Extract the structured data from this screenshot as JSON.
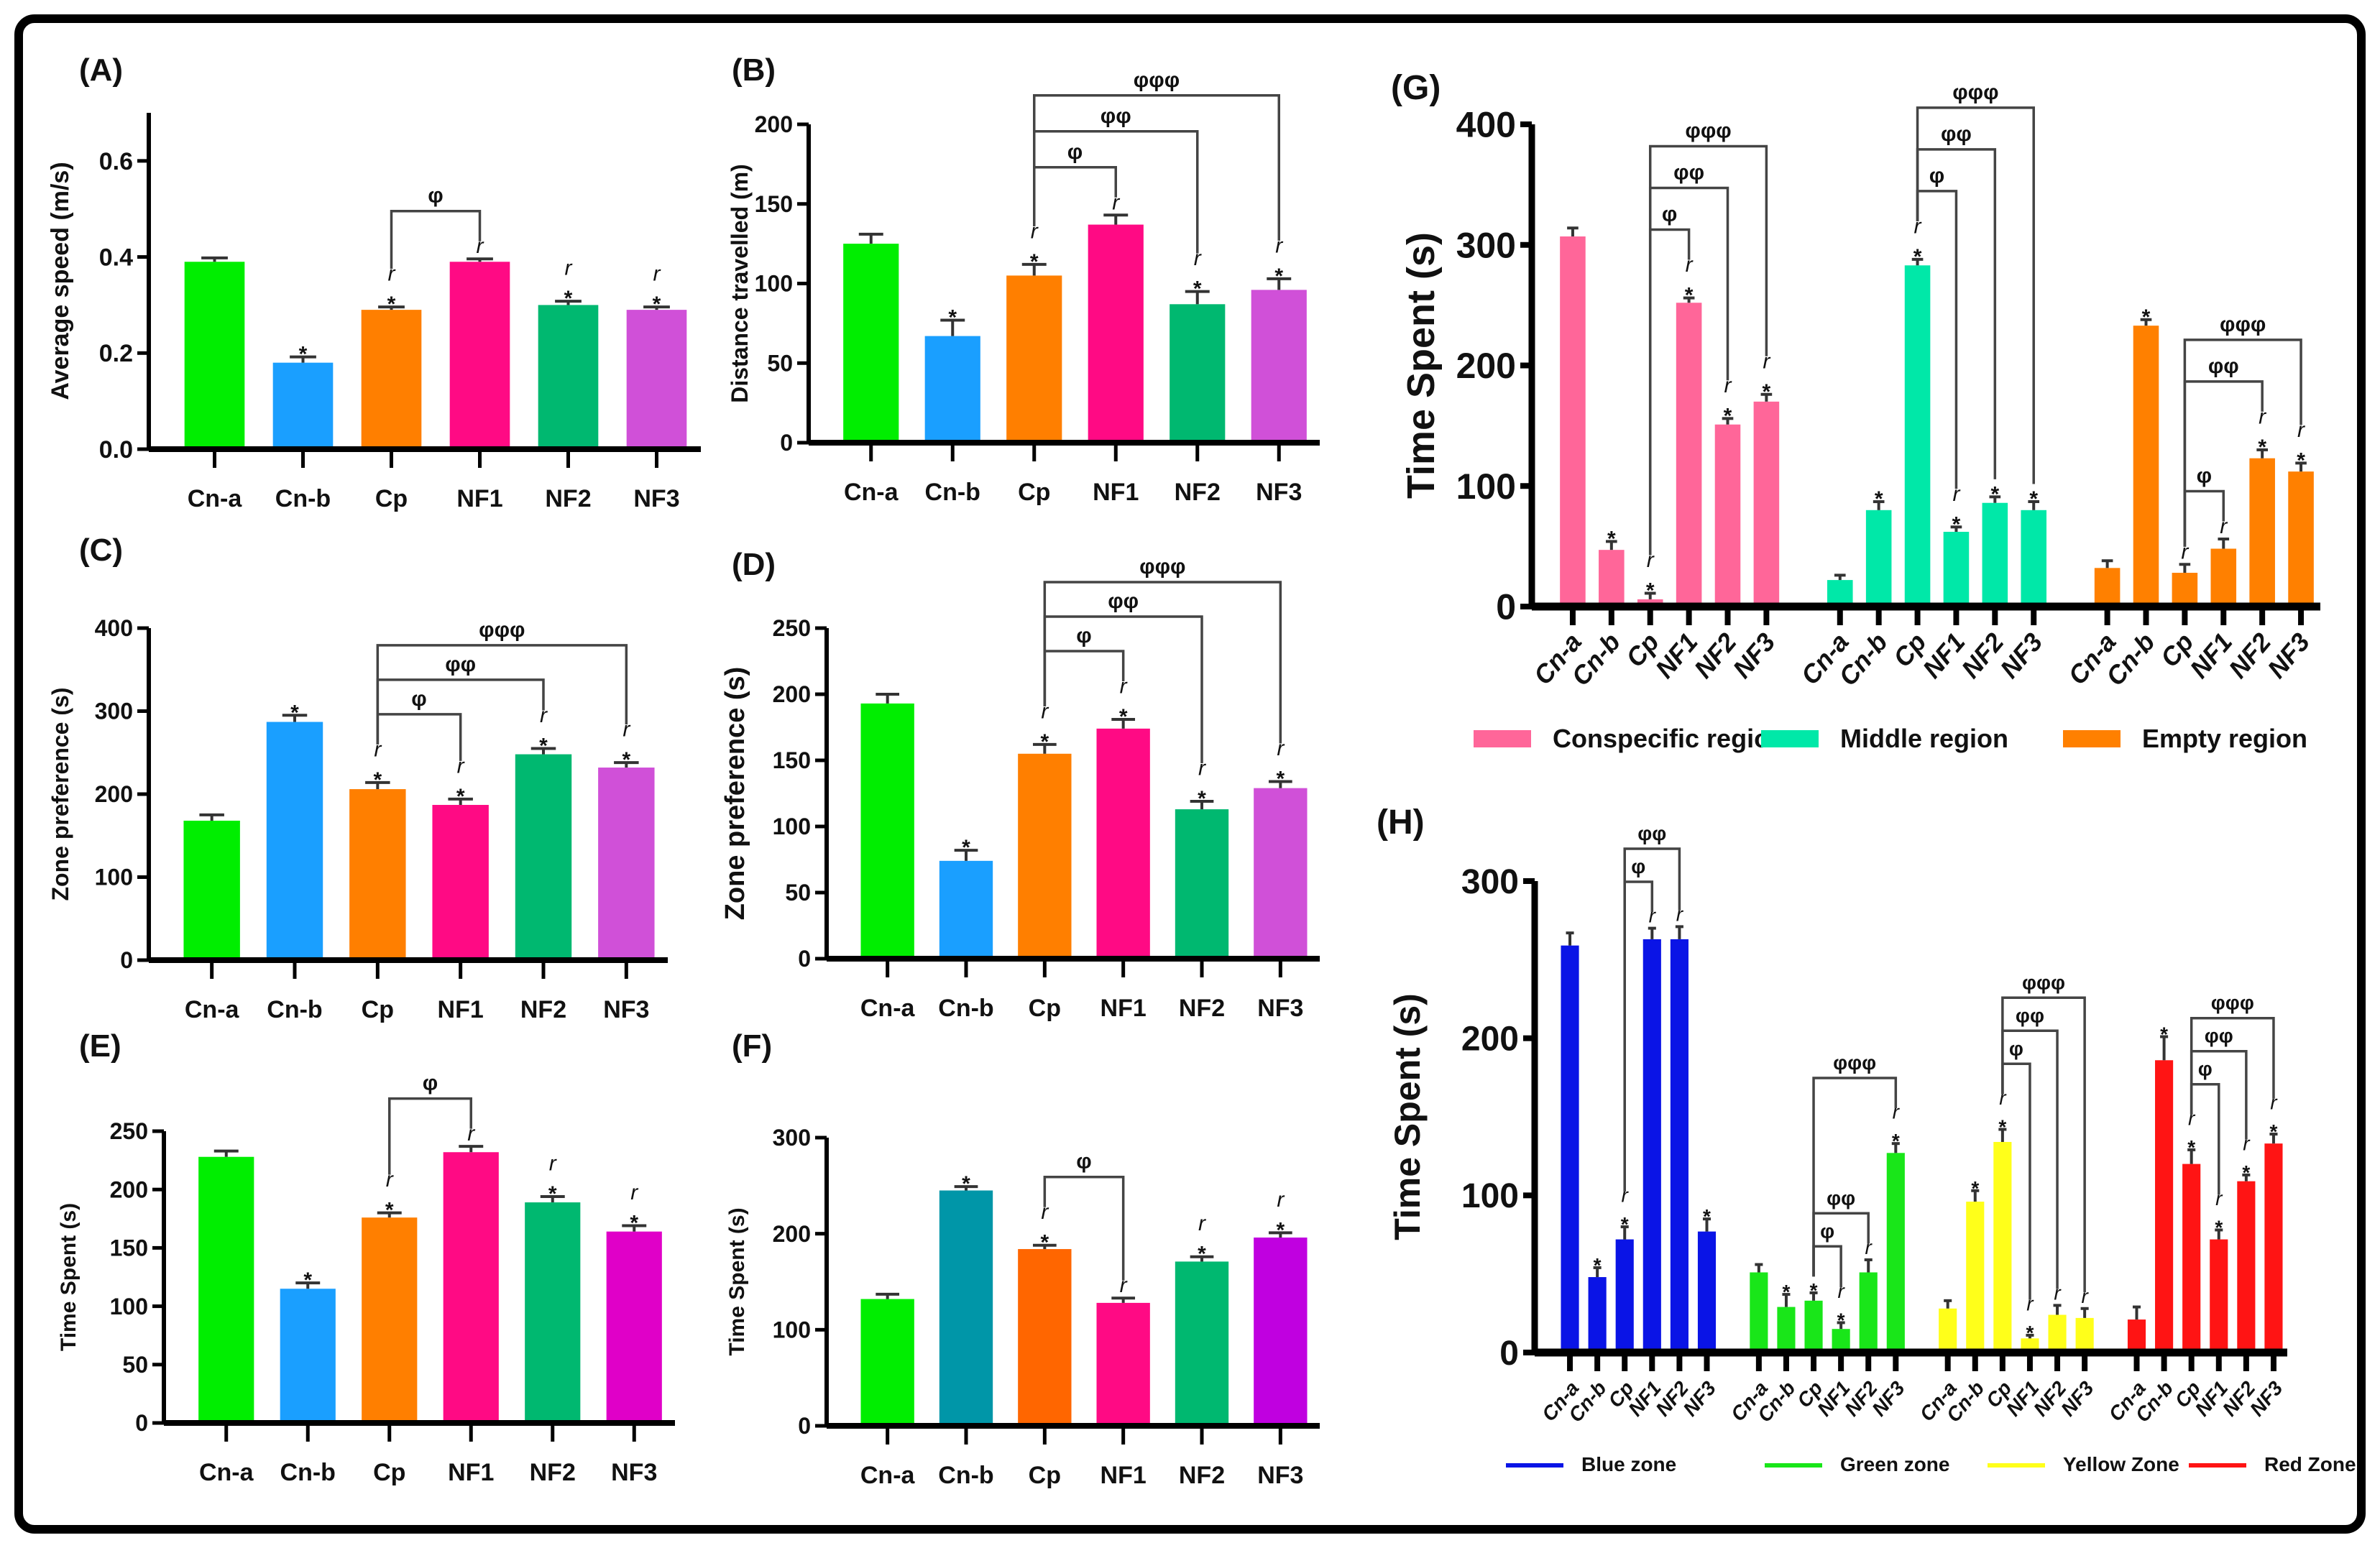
{
  "chart_data": [
    {
      "title": "(A)",
      "type": "bar",
      "ylabel": "Average speed (m/s)",
      "ylim": [
        0,
        0.7
      ],
      "yticks": [
        "0.0",
        "0.2",
        "0.4",
        "0.6"
      ],
      "ytick_values": [
        0,
        0.2,
        0.4,
        0.6
      ],
      "groups": [
        {
          "name": "",
          "categories": [
            "Cn-a",
            "Cn-b",
            "Cp",
            "NF1",
            "NF2",
            "NF3"
          ],
          "colors": [
            "#00ee00",
            "#1a9fff",
            "#ff7f00",
            "#ff0a84",
            "#00b870",
            "#d050d8"
          ],
          "values": [
            0.39,
            0.18,
            0.29,
            0.39,
            0.3,
            0.29
          ],
          "errors": [
            0.008,
            0.012,
            0.006,
            0.006,
            0.008,
            0.006
          ],
          "marks": [
            [],
            [
              "*"
            ],
            [
              "*",
              "r"
            ],
            [
              "r"
            ],
            [
              "*",
              "r"
            ],
            [
              "*",
              "r"
            ]
          ],
          "brackets": [
            {
              "from": 2,
              "to": 3,
              "label": "φ"
            }
          ]
        }
      ]
    },
    {
      "title": "(B)",
      "type": "bar",
      "ylabel": "Distance travelled (m)",
      "ylim": [
        0,
        200
      ],
      "yticks": [
        "0",
        "50",
        "100",
        "150",
        "200"
      ],
      "ytick_values": [
        0,
        50,
        100,
        150,
        200
      ],
      "groups": [
        {
          "name": "",
          "categories": [
            "Cn-a",
            "Cn-b",
            "Cp",
            "NF1",
            "NF2",
            "NF3"
          ],
          "colors": [
            "#00ee00",
            "#1a9fff",
            "#ff7f00",
            "#ff0a84",
            "#00b870",
            "#d050d8"
          ],
          "values": [
            125,
            67,
            105,
            137,
            87,
            96
          ],
          "errors": [
            6,
            10,
            7,
            6,
            8,
            7
          ],
          "marks": [
            [],
            [
              "*"
            ],
            [
              "*",
              "r"
            ],
            [
              "r"
            ],
            [
              "*",
              "r"
            ],
            [
              "*",
              "r"
            ]
          ],
          "brackets": [
            {
              "from": 2,
              "to": 3,
              "label": "φ"
            },
            {
              "from": 2,
              "to": 4,
              "label": "φφ"
            },
            {
              "from": 2,
              "to": 5,
              "label": "φφφ"
            }
          ]
        }
      ]
    },
    {
      "title": "(C)",
      "type": "bar",
      "ylabel": "Zone preference (s)",
      "ylim": [
        0,
        400
      ],
      "yticks": [
        "0",
        "100",
        "200",
        "300",
        "400"
      ],
      "ytick_values": [
        0,
        100,
        200,
        300,
        400
      ],
      "groups": [
        {
          "name": "",
          "categories": [
            "Cn-a",
            "Cn-b",
            "Cp",
            "NF1",
            "NF2",
            "NF3"
          ],
          "colors": [
            "#00ee00",
            "#1a9fff",
            "#ff7f00",
            "#ff0a84",
            "#00b870",
            "#d050d8"
          ],
          "values": [
            168,
            287,
            206,
            187,
            248,
            232
          ],
          "errors": [
            7,
            8,
            8,
            7,
            7,
            6
          ],
          "marks": [
            [],
            [
              "*"
            ],
            [
              "*",
              "r"
            ],
            [
              "*",
              "r"
            ],
            [
              "*",
              "r"
            ],
            [
              "*",
              "r"
            ]
          ],
          "brackets": [
            {
              "from": 2,
              "to": 3,
              "label": "φ"
            },
            {
              "from": 2,
              "to": 4,
              "label": "φφ"
            },
            {
              "from": 2,
              "to": 5,
              "label": "φφφ"
            }
          ]
        }
      ]
    },
    {
      "title": "(D)",
      "type": "bar",
      "ylabel": "Zone preference (s)",
      "ylim": [
        0,
        250
      ],
      "yticks": [
        "0",
        "50",
        "100",
        "150",
        "200",
        "250"
      ],
      "ytick_values": [
        0,
        50,
        100,
        150,
        200,
        250
      ],
      "groups": [
        {
          "name": "",
          "categories": [
            "Cn-a",
            "Cn-b",
            "Cp",
            "NF1",
            "NF2",
            "NF3"
          ],
          "colors": [
            "#00ee00",
            "#1a9fff",
            "#ff7f00",
            "#ff0a84",
            "#00b870",
            "#d050d8"
          ],
          "values": [
            193,
            74,
            155,
            174,
            113,
            129
          ],
          "errors": [
            7,
            8,
            7,
            7,
            6,
            5
          ],
          "marks": [
            [],
            [
              "*"
            ],
            [
              "*",
              "r"
            ],
            [
              "*",
              "r"
            ],
            [
              "*",
              "r"
            ],
            [
              "*",
              "r"
            ]
          ],
          "brackets": [
            {
              "from": 2,
              "to": 3,
              "label": "φ"
            },
            {
              "from": 2,
              "to": 4,
              "label": "φφ"
            },
            {
              "from": 2,
              "to": 5,
              "label": "φφφ"
            }
          ]
        }
      ]
    },
    {
      "title": "(E)",
      "type": "bar",
      "ylabel": "Time Spent (s)",
      "ylim": [
        0,
        250
      ],
      "yticks": [
        "0",
        "50",
        "100",
        "150",
        "200",
        "250"
      ],
      "ytick_values": [
        0,
        50,
        100,
        150,
        200,
        250
      ],
      "groups": [
        {
          "name": "",
          "categories": [
            "Cn-a",
            "Cn-b",
            "Cp",
            "NF1",
            "NF2",
            "NF3"
          ],
          "colors": [
            "#00ee00",
            "#1a9fff",
            "#ff7f00",
            "#ff0a84",
            "#00b870",
            "#e000c8"
          ],
          "values": [
            228,
            115,
            176,
            232,
            189,
            164
          ],
          "errors": [
            5,
            5,
            4,
            5,
            5,
            5
          ],
          "marks": [
            [],
            [
              "*"
            ],
            [
              "*",
              "r"
            ],
            [
              "r"
            ],
            [
              "*",
              "r"
            ],
            [
              "*",
              "r"
            ]
          ],
          "brackets": [
            {
              "from": 2,
              "to": 3,
              "label": "φ"
            }
          ]
        }
      ]
    },
    {
      "title": "(F)",
      "type": "bar",
      "ylabel": "Time Spent (s)",
      "ylim": [
        0,
        300
      ],
      "yticks": [
        "0",
        "100",
        "200",
        "300"
      ],
      "ytick_values": [
        0,
        100,
        200,
        300
      ],
      "groups": [
        {
          "name": "",
          "categories": [
            "Cn-a",
            "Cn-b",
            "Cp",
            "NF1",
            "NF2",
            "NF3"
          ],
          "colors": [
            "#00ee00",
            "#0096a8",
            "#ff6600",
            "#ff0a84",
            "#00b870",
            "#c000e0"
          ],
          "values": [
            132,
            245,
            184,
            128,
            171,
            196
          ],
          "errors": [
            5,
            4,
            4,
            5,
            5,
            5
          ],
          "marks": [
            [],
            [
              "*"
            ],
            [
              "*",
              "r"
            ],
            [
              "r"
            ],
            [
              "*",
              "r"
            ],
            [
              "*",
              "r"
            ]
          ],
          "brackets": [
            {
              "from": 2,
              "to": 3,
              "label": "φ"
            }
          ]
        }
      ]
    },
    {
      "title": "(G)",
      "type": "bar",
      "ylabel": "Time Spent (s)",
      "ylim": [
        0,
        400
      ],
      "yticks": [
        "0",
        "100",
        "200",
        "300",
        "400"
      ],
      "ytick_values": [
        0,
        100,
        200,
        300,
        400
      ],
      "legend_style": "box",
      "groups": [
        {
          "name": "Conspecific region",
          "color": "#ff6699",
          "categories": [
            "Cn-a",
            "Cn-b",
            "Cp",
            "NF1",
            "NF2",
            "NF3"
          ],
          "values": [
            307,
            47,
            6,
            252,
            151,
            170
          ],
          "errors": [
            7,
            7,
            5,
            4,
            5,
            6
          ],
          "marks": [
            [],
            [
              "*"
            ],
            [
              "*",
              "r"
            ],
            [
              "*",
              "r"
            ],
            [
              "*",
              "r"
            ],
            [
              "*",
              "r"
            ]
          ],
          "brackets": [
            {
              "from": 2,
              "to": 3,
              "label": "φ"
            },
            {
              "from": 2,
              "to": 4,
              "label": "φφ"
            },
            {
              "from": 2,
              "to": 5,
              "label": "φφφ"
            }
          ]
        },
        {
          "name": "Middle region",
          "color": "#00e8a8",
          "categories": [
            "Cn-a",
            "Cn-b",
            "Cp",
            "NF1",
            "NF2",
            "NF3"
          ],
          "values": [
            22,
            80,
            283,
            62,
            86,
            80
          ],
          "errors": [
            4,
            7,
            5,
            4,
            5,
            7
          ],
          "marks": [
            [],
            [
              "*"
            ],
            [
              "*",
              "r"
            ],
            [
              "*",
              "r"
            ],
            [
              "*"
            ],
            [
              "*"
            ]
          ],
          "brackets": [
            {
              "from": 2,
              "to": 3,
              "label": "φ"
            },
            {
              "from": 2,
              "to": 4,
              "label": "φφ"
            },
            {
              "from": 2,
              "to": 5,
              "label": "φφφ"
            }
          ]
        },
        {
          "name": "Empty region",
          "color": "#ff8000",
          "categories": [
            "Cn-a",
            "Cn-b",
            "Cp",
            "NF1",
            "NF2",
            "NF3"
          ],
          "values": [
            32,
            233,
            28,
            48,
            123,
            112
          ],
          "errors": [
            6,
            5,
            7,
            8,
            7,
            7
          ],
          "marks": [
            [],
            [
              "*"
            ],
            [
              "r"
            ],
            [
              "r"
            ],
            [
              "*",
              "r"
            ],
            [
              "*",
              "r"
            ]
          ],
          "brackets": [
            {
              "from": 2,
              "to": 3,
              "label": "φ"
            },
            {
              "from": 2,
              "to": 4,
              "label": "φφ"
            },
            {
              "from": 2,
              "to": 5,
              "label": "φφφ"
            }
          ]
        }
      ]
    },
    {
      "title": "(H)",
      "type": "bar",
      "ylabel": "Time Spent (s)",
      "ylim": [
        0,
        300
      ],
      "yticks": [
        "0",
        "100",
        "200",
        "300"
      ],
      "ytick_values": [
        0,
        100,
        200,
        300
      ],
      "legend_style": "line",
      "rotate_labels": true,
      "groups": [
        {
          "name": "Blue zone",
          "color": "#0a14e6",
          "categories": [
            "Cn-a",
            "Cn-b",
            "Cp",
            "NF1",
            "NF2",
            "NF3"
          ],
          "values": [
            259,
            48,
            72,
            263,
            263,
            77
          ],
          "errors": [
            8,
            6,
            8,
            7,
            8,
            8
          ],
          "marks": [
            [],
            [
              "*"
            ],
            [
              "*",
              "r"
            ],
            [
              "r"
            ],
            [
              "r"
            ],
            [
              "*"
            ]
          ],
          "brackets": [
            {
              "from": 2,
              "to": 3,
              "label": "φ"
            },
            {
              "from": 2,
              "to": 4,
              "label": "φφ"
            }
          ]
        },
        {
          "name": "Green zone",
          "color": "#19e619",
          "categories": [
            "Cn-a",
            "Cn-b",
            "Cp",
            "NF1",
            "NF2",
            "NF3"
          ],
          "values": [
            51,
            29,
            33,
            15,
            51,
            127
          ],
          "errors": [
            5,
            8,
            5,
            4,
            8,
            6
          ],
          "marks": [
            [],
            [
              "*"
            ],
            [
              "*"
            ],
            [
              "*",
              "r"
            ],
            [
              "r"
            ],
            [
              "*",
              "r"
            ]
          ],
          "brackets": [
            {
              "from": 2,
              "to": 3,
              "label": "φ"
            },
            {
              "from": 2,
              "to": 4,
              "label": "φφ"
            },
            {
              "from": 2,
              "to": 5,
              "label": "φφφ"
            }
          ]
        },
        {
          "name": "Yellow Zone",
          "color": "#ffff1a",
          "categories": [
            "Cn-a",
            "Cn-b",
            "Cp",
            "NF1",
            "NF2",
            "NF3"
          ],
          "values": [
            28,
            96,
            134,
            9,
            24,
            22
          ],
          "errors": [
            5,
            7,
            8,
            2,
            6,
            6
          ],
          "marks": [
            [],
            [
              "*"
            ],
            [
              "*",
              "r"
            ],
            [
              "*",
              "r"
            ],
            [
              "r"
            ],
            [
              "r"
            ]
          ],
          "brackets": [
            {
              "from": 2,
              "to": 3,
              "label": "φ"
            },
            {
              "from": 2,
              "to": 4,
              "label": "φφ"
            },
            {
              "from": 2,
              "to": 5,
              "label": "φφφ"
            }
          ]
        },
        {
          "name": "Red Zone",
          "color": "#ff1414",
          "categories": [
            "Cn-a",
            "Cn-b",
            "Cp",
            "NF1",
            "NF2",
            "NF3"
          ],
          "values": [
            21,
            186,
            120,
            72,
            109,
            133
          ],
          "errors": [
            8,
            15,
            9,
            6,
            4,
            6
          ],
          "marks": [
            [],
            [
              "*"
            ],
            [
              "*",
              "r"
            ],
            [
              "*",
              "r"
            ],
            [
              "*",
              "r"
            ],
            [
              "*",
              "r"
            ]
          ],
          "brackets": [
            {
              "from": 2,
              "to": 3,
              "label": "φ"
            },
            {
              "from": 2,
              "to": 4,
              "label": "φφ"
            },
            {
              "from": 2,
              "to": 5,
              "label": "φφφ"
            }
          ]
        }
      ]
    }
  ]
}
